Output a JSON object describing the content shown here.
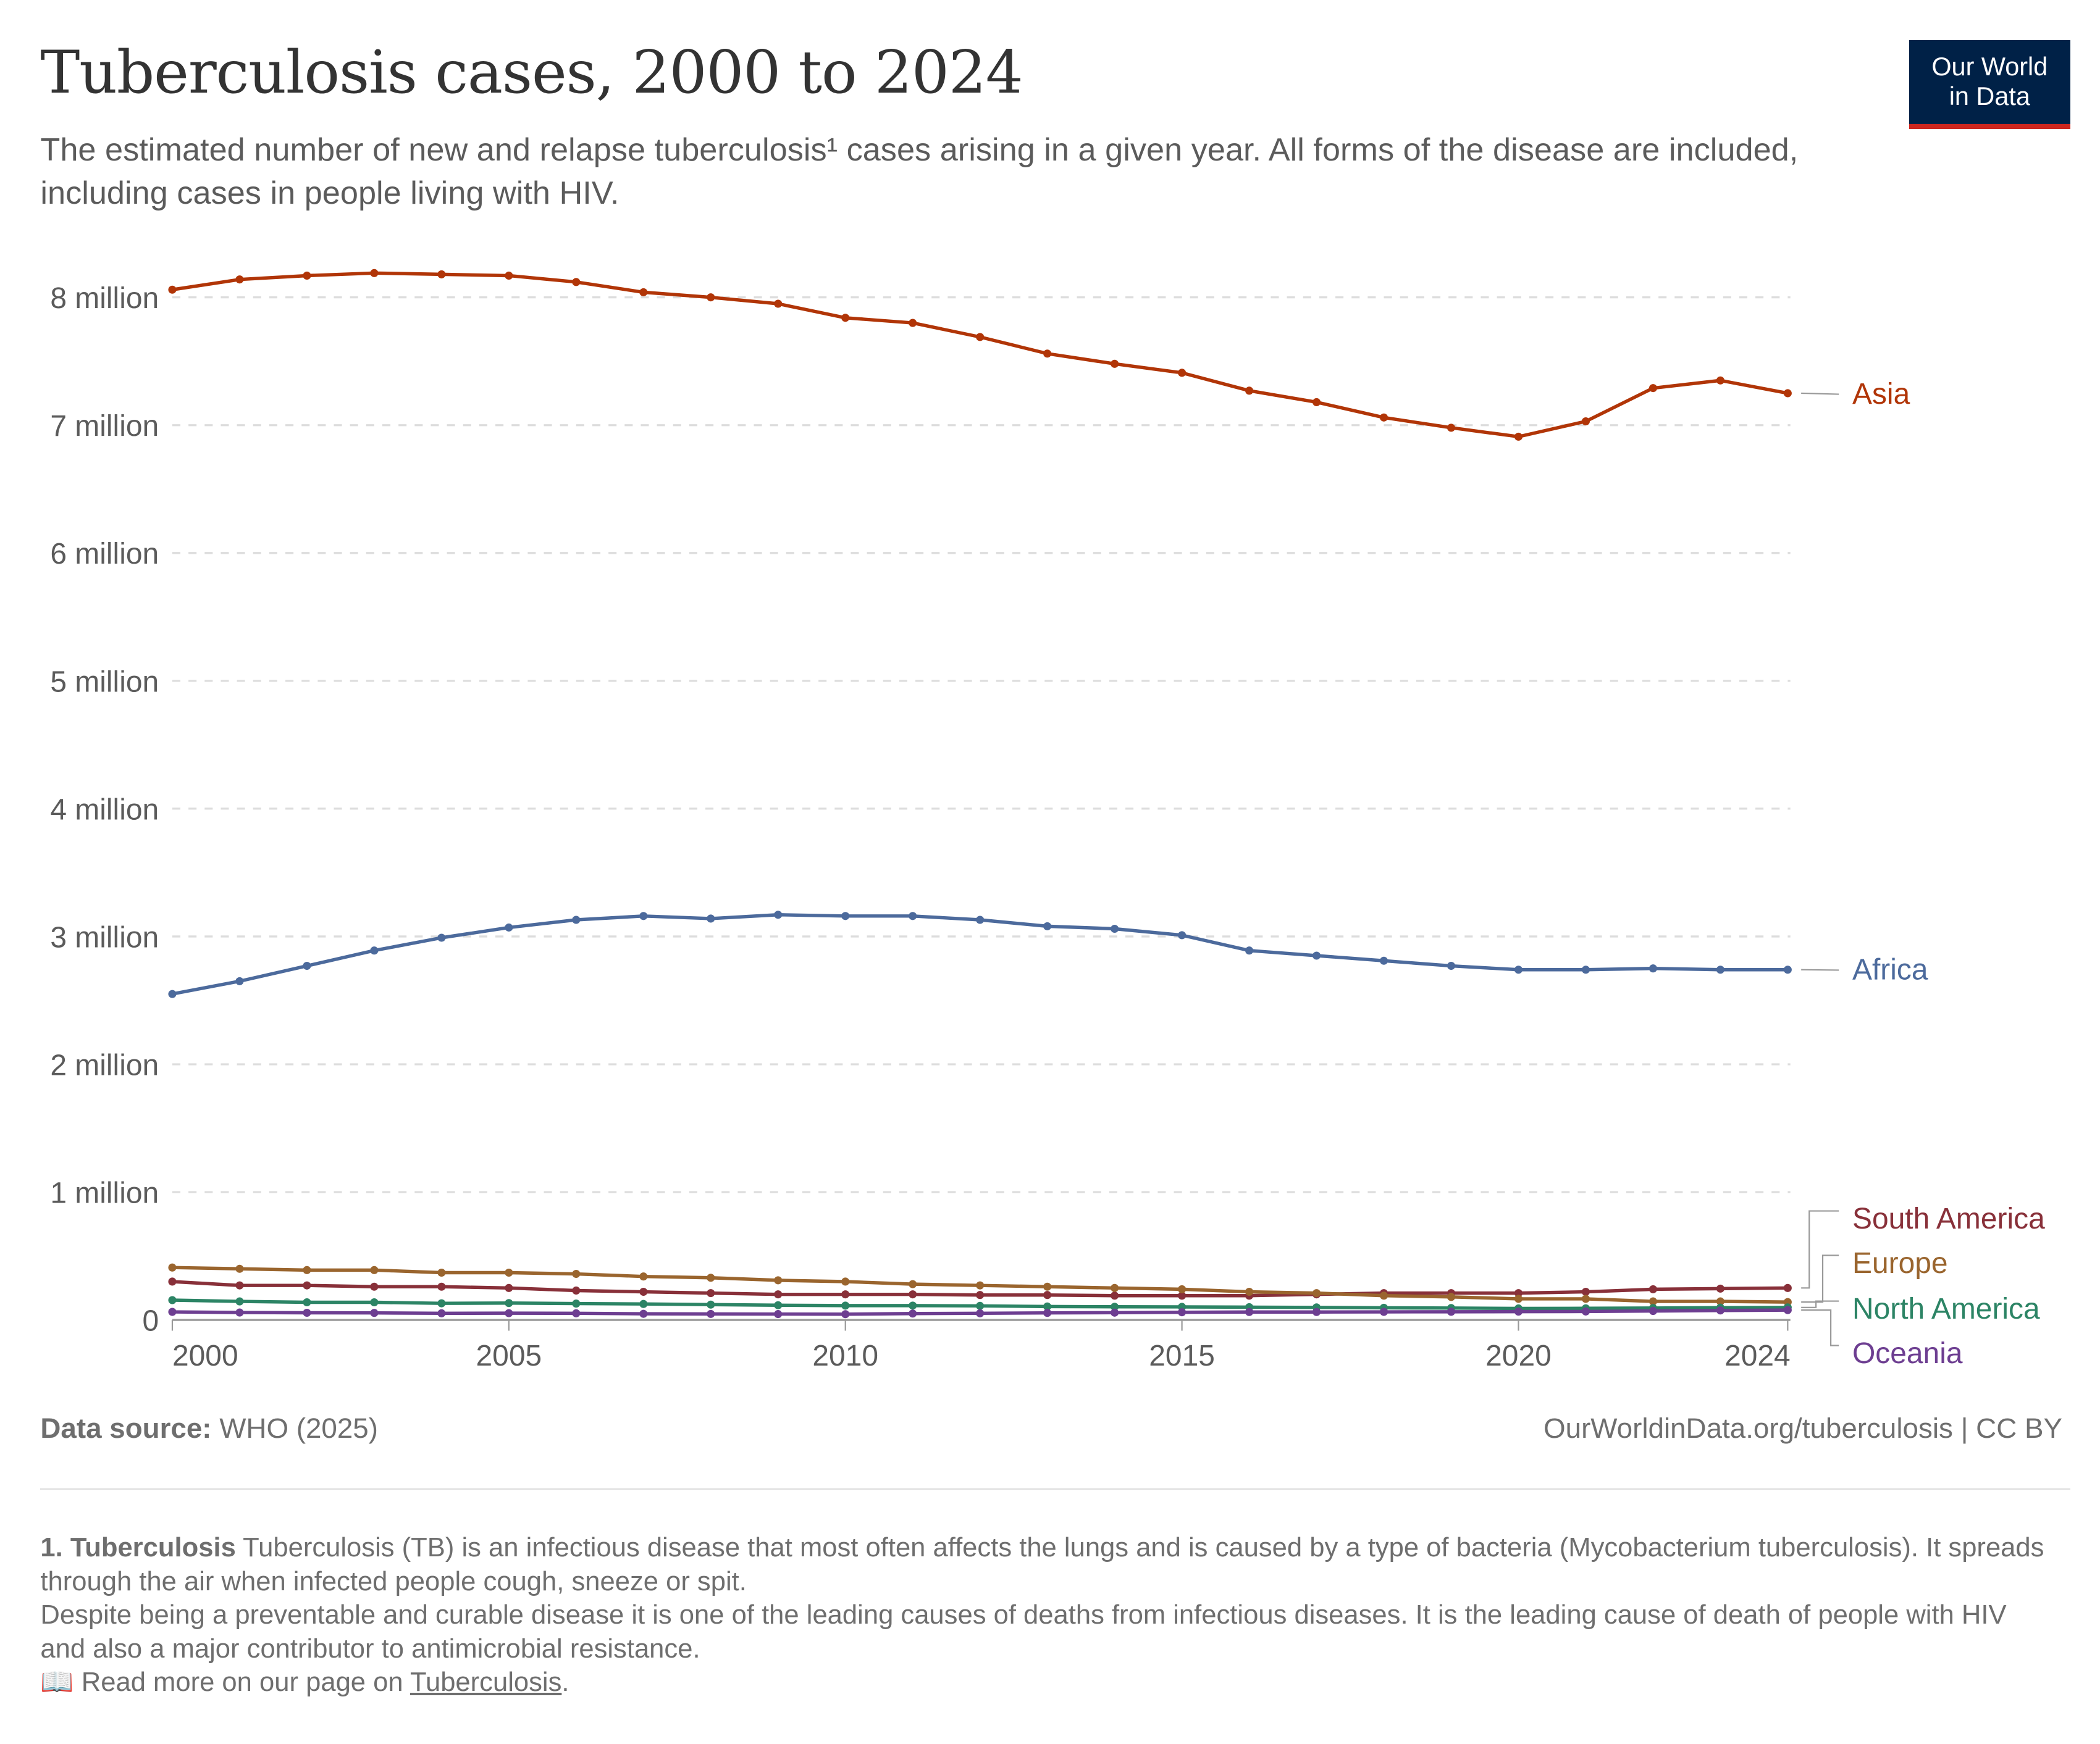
{
  "header": {
    "title": "Tuberculosis cases, 2000 to 2024",
    "subtitle": "The estimated number of new and relapse tuberculosis¹ cases arising in a given year. All forms of the disease are included, including cases in people living with HIV.",
    "logo_text": "Our World in Data"
  },
  "chart_data": {
    "type": "line",
    "title": "Tuberculosis cases, 2000 to 2024",
    "x": [
      2000,
      2001,
      2002,
      2003,
      2004,
      2005,
      2006,
      2007,
      2008,
      2009,
      2010,
      2011,
      2012,
      2013,
      2014,
      2015,
      2016,
      2017,
      2018,
      2019,
      2020,
      2021,
      2022,
      2023,
      2024
    ],
    "xlim": [
      2000,
      2024
    ],
    "ylim": [
      0,
      8000000
    ],
    "x_ticks": [
      {
        "value": 2000,
        "label": "2000"
      },
      {
        "value": 2005,
        "label": "2005"
      },
      {
        "value": 2010,
        "label": "2010"
      },
      {
        "value": 2015,
        "label": "2015"
      },
      {
        "value": 2020,
        "label": "2020"
      },
      {
        "value": 2024,
        "label": "2024"
      }
    ],
    "y_ticks": [
      {
        "value": 0,
        "label": "0"
      },
      {
        "value": 1000000,
        "label": "1 million"
      },
      {
        "value": 2000000,
        "label": "2 million"
      },
      {
        "value": 3000000,
        "label": "3 million"
      },
      {
        "value": 4000000,
        "label": "4 million"
      },
      {
        "value": 5000000,
        "label": "5 million"
      },
      {
        "value": 6000000,
        "label": "6 million"
      },
      {
        "value": 7000000,
        "label": "7 million"
      },
      {
        "value": 8000000,
        "label": "8 million"
      }
    ],
    "grid": "horizontal dashed",
    "legend": "inline right labels",
    "series": [
      {
        "name": "Asia",
        "color": "#b13507",
        "values": [
          8060000,
          8140000,
          8170000,
          8190000,
          8180000,
          8170000,
          8120000,
          8040000,
          8000000,
          7950000,
          7840000,
          7800000,
          7690000,
          7560000,
          7480000,
          7410000,
          7270000,
          7180000,
          7060000,
          6980000,
          6910000,
          7030000,
          7290000,
          7350000,
          7250000
        ]
      },
      {
        "name": "Africa",
        "color": "#4c6a9c",
        "values": [
          2550000,
          2650000,
          2770000,
          2890000,
          2990000,
          3070000,
          3130000,
          3160000,
          3140000,
          3170000,
          3160000,
          3160000,
          3130000,
          3080000,
          3060000,
          3010000,
          2890000,
          2850000,
          2810000,
          2770000,
          2740000,
          2740000,
          2750000,
          2740000,
          2740000
        ]
      },
      {
        "name": "South America",
        "color": "#883039",
        "values": [
          300000,
          270000,
          270000,
          260000,
          260000,
          250000,
          230000,
          220000,
          210000,
          200000,
          200000,
          200000,
          195000,
          195000,
          190000,
          190000,
          190000,
          200000,
          210000,
          210000,
          210000,
          220000,
          240000,
          245000,
          250000
        ]
      },
      {
        "name": "Europe",
        "color": "#9a652e",
        "values": [
          410000,
          400000,
          390000,
          390000,
          370000,
          370000,
          360000,
          340000,
          330000,
          310000,
          300000,
          280000,
          270000,
          260000,
          250000,
          240000,
          220000,
          210000,
          190000,
          180000,
          165000,
          165000,
          145000,
          145000,
          140000
        ]
      },
      {
        "name": "North America",
        "color": "#2c8465",
        "values": [
          155000,
          145000,
          138000,
          138000,
          130000,
          132000,
          128000,
          125000,
          120000,
          115000,
          112000,
          112000,
          110000,
          105000,
          103000,
          102000,
          100000,
          98000,
          95000,
          93000,
          90000,
          91000,
          93000,
          96000,
          98000
        ]
      },
      {
        "name": "Oceania",
        "color": "#6d3e91",
        "values": [
          63000,
          58000,
          56000,
          55000,
          52000,
          53000,
          52000,
          48000,
          47000,
          46000,
          45000,
          50000,
          52000,
          55000,
          57000,
          60000,
          62000,
          62000,
          63000,
          64000,
          65000,
          66000,
          70000,
          74000,
          77000
        ]
      }
    ]
  },
  "footer": {
    "source_label": "Data source:",
    "source_value": " WHO (2025)",
    "url": "OurWorldinData.org/tuberculosis | CC BY",
    "note_title": "1. Tuberculosis",
    "note_body": " Tuberculosis (TB) is an infectious disease that most often affects the lungs and is caused by a type of bacteria (Mycobacterium tuberculosis). It spreads through the air when infected people cough, sneeze or spit.",
    "note_body2": "Despite being a preventable and curable disease it is one of the leading causes of deaths from infectious diseases. It is the leading cause of death of people with HIV and also a major contributor to antimicrobial resistance.",
    "read_more_icon": "book-icon",
    "read_more_prefix": " Read more on our page on ",
    "read_more_link": "Tuberculosis",
    "read_more_suffix": "."
  }
}
